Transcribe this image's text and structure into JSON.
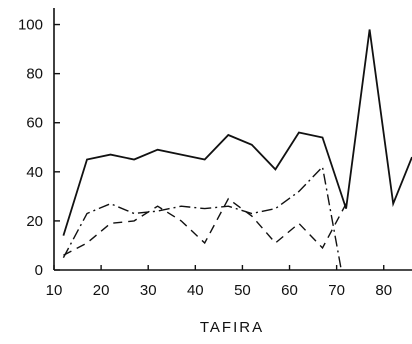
{
  "chart_data": {
    "type": "line",
    "title": "TAFIRA",
    "xlabel": "",
    "ylabel": "",
    "xlim": [
      10,
      86
    ],
    "ylim": [
      0,
      110
    ],
    "xticks": [
      10,
      20,
      30,
      40,
      50,
      60,
      70,
      80
    ],
    "yticks": [
      0,
      20,
      40,
      60,
      80,
      100
    ],
    "grid": false,
    "legend": "none",
    "series": [
      {
        "style": "solid",
        "color": "#111111",
        "points": [
          [
            12,
            14
          ],
          [
            17,
            45
          ],
          [
            22,
            47
          ],
          [
            27,
            45
          ],
          [
            32,
            49
          ],
          [
            37,
            47
          ],
          [
            42,
            45
          ],
          [
            47,
            55
          ],
          [
            52,
            51
          ],
          [
            57,
            41
          ],
          [
            62,
            56
          ],
          [
            67,
            54
          ],
          [
            72,
            25
          ],
          [
            77,
            98
          ],
          [
            82,
            27
          ],
          [
            86,
            46
          ]
        ]
      },
      {
        "style": "dashed",
        "color": "#111111",
        "points": [
          [
            12,
            6
          ],
          [
            17,
            11
          ],
          [
            22,
            19
          ],
          [
            27,
            20
          ],
          [
            32,
            26
          ],
          [
            37,
            20
          ],
          [
            42,
            11
          ],
          [
            47,
            29
          ],
          [
            52,
            22
          ],
          [
            57,
            11
          ],
          [
            62,
            19
          ],
          [
            67,
            9
          ],
          [
            72,
            27
          ]
        ]
      },
      {
        "style": "dashdot",
        "color": "#111111",
        "points": [
          [
            12,
            5
          ],
          [
            17,
            23
          ],
          [
            22,
            27
          ],
          [
            27,
            23
          ],
          [
            32,
            24
          ],
          [
            37,
            26
          ],
          [
            42,
            25
          ],
          [
            47,
            26
          ],
          [
            52,
            23
          ],
          [
            57,
            25
          ],
          [
            62,
            32
          ],
          [
            67,
            42
          ],
          [
            71,
            0
          ]
        ]
      }
    ]
  }
}
